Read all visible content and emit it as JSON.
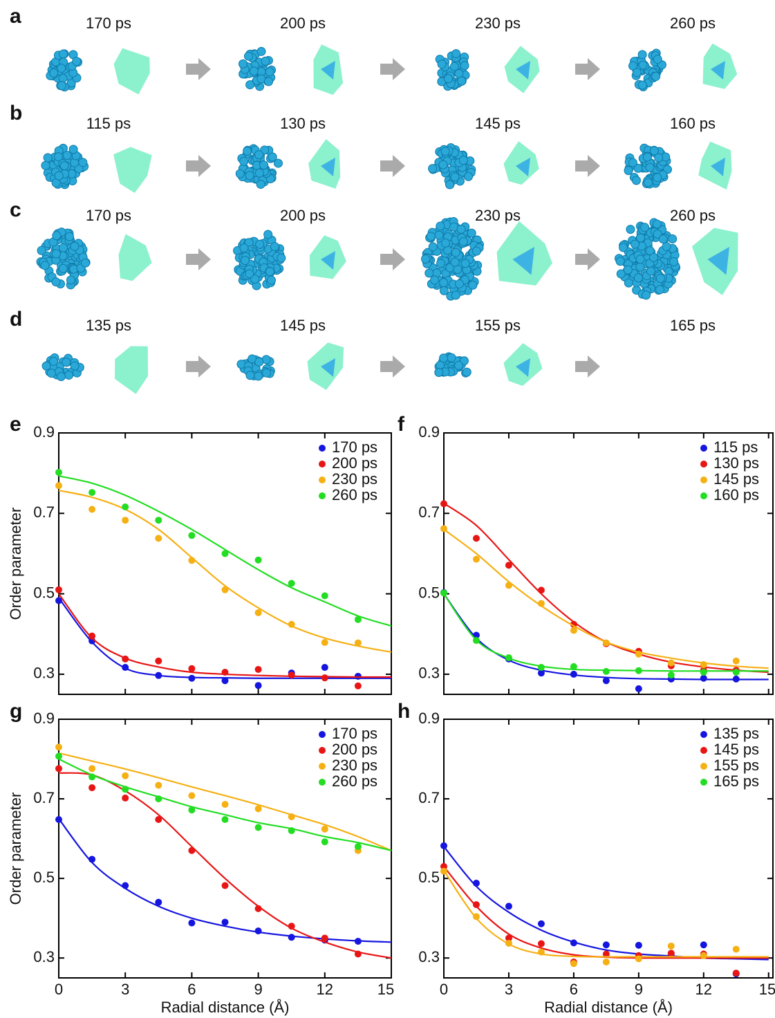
{
  "rows": [
    {
      "letter": "a",
      "times": [
        "170 ps",
        "200 ps",
        "230 ps",
        "260 ps"
      ]
    },
    {
      "letter": "b",
      "times": [
        "115 ps",
        "130 ps",
        "145 ps",
        "160 ps"
      ]
    },
    {
      "letter": "c",
      "times": [
        "170 ps",
        "200 ps",
        "230 ps",
        "260 ps"
      ]
    },
    {
      "letter": "d",
      "times": [
        "135 ps",
        "145 ps",
        "155 ps",
        "165 ps"
      ]
    }
  ],
  "chart_data": [
    {
      "type": "scatter",
      "panel": "e",
      "ylabel": "Order parameter",
      "xtick_labels": false,
      "x": [
        0,
        1.5,
        3,
        4.5,
        6,
        7.5,
        9,
        10.5,
        12,
        13.5
      ],
      "fit_x": [
        0,
        1.5,
        3,
        4.5,
        6,
        7.5,
        9,
        10.5,
        12,
        13.5,
        15
      ],
      "xlim": [
        0,
        15
      ],
      "ylim": [
        0.25,
        0.9
      ],
      "xticks": [
        0,
        3,
        6,
        9,
        12,
        15
      ],
      "yticks": [
        0.3,
        0.5,
        0.7,
        0.9
      ],
      "legend": "upper right",
      "series": [
        {
          "name": "170 ps",
          "color": "#1515e0",
          "values": [
            0.483,
            0.383,
            0.317,
            0.297,
            0.29,
            0.284,
            0.272,
            0.303,
            0.317,
            0.295
          ],
          "fit": [
            0.49,
            0.38,
            0.315,
            0.297,
            0.292,
            0.291,
            0.29,
            0.29,
            0.29,
            0.29,
            0.29
          ]
        },
        {
          "name": "200 ps",
          "color": "#e81515",
          "values": [
            0.51,
            0.395,
            0.338,
            0.333,
            0.314,
            0.305,
            0.312,
            0.298,
            0.291,
            0.271
          ],
          "fit": [
            0.5,
            0.39,
            0.34,
            0.318,
            0.305,
            0.3,
            0.297,
            0.295,
            0.294,
            0.293,
            0.293
          ]
        },
        {
          "name": "230 ps",
          "color": "#f5b014",
          "values": [
            0.769,
            0.71,
            0.683,
            0.638,
            0.583,
            0.51,
            0.453,
            0.424,
            0.379,
            0.378
          ],
          "fit": [
            0.757,
            0.74,
            0.71,
            0.66,
            0.59,
            0.52,
            0.465,
            0.42,
            0.39,
            0.37,
            0.355
          ]
        },
        {
          "name": "260 ps",
          "color": "#22dd22",
          "values": [
            0.802,
            0.752,
            0.716,
            0.683,
            0.645,
            0.6,
            0.584,
            0.526,
            0.495,
            0.436
          ],
          "fit": [
            0.793,
            0.775,
            0.745,
            0.705,
            0.66,
            0.61,
            0.56,
            0.515,
            0.48,
            0.445,
            0.42
          ]
        }
      ]
    },
    {
      "type": "scatter",
      "panel": "f",
      "xtick_labels": false,
      "x": [
        0,
        1.5,
        3,
        4.5,
        6,
        7.5,
        9,
        10.5,
        12,
        13.5
      ],
      "fit_x": [
        0,
        1.5,
        3,
        4.5,
        6,
        7.5,
        9,
        10.5,
        12,
        13.5,
        15
      ],
      "xlim": [
        0,
        15.2
      ],
      "ylim": [
        0.25,
        0.9
      ],
      "xticks": [
        0,
        3,
        6,
        9,
        12,
        15
      ],
      "yticks": [
        0.3,
        0.5,
        0.7,
        0.9
      ],
      "legend": "upper right",
      "series": [
        {
          "name": "115 ps",
          "color": "#1515e0",
          "values": [
            0.503,
            0.397,
            0.338,
            0.303,
            0.3,
            0.284,
            0.264,
            0.288,
            0.29,
            0.288
          ],
          "fit": [
            0.5,
            0.39,
            0.335,
            0.31,
            0.298,
            0.292,
            0.289,
            0.288,
            0.287,
            0.287,
            0.287
          ]
        },
        {
          "name": "130 ps",
          "color": "#e81515",
          "values": [
            0.724,
            0.638,
            0.571,
            0.509,
            0.424,
            0.376,
            0.357,
            0.321,
            0.31,
            0.31
          ],
          "fit": [
            0.725,
            0.67,
            0.585,
            0.5,
            0.43,
            0.38,
            0.35,
            0.33,
            0.318,
            0.31,
            0.305
          ]
        },
        {
          "name": "145 ps",
          "color": "#f5b014",
          "values": [
            0.662,
            0.586,
            0.521,
            0.476,
            0.409,
            0.378,
            0.35,
            0.328,
            0.324,
            0.333
          ],
          "fit": [
            0.66,
            0.6,
            0.53,
            0.47,
            0.42,
            0.38,
            0.355,
            0.34,
            0.328,
            0.32,
            0.315
          ]
        },
        {
          "name": "160 ps",
          "color": "#22dd22",
          "values": [
            0.502,
            0.384,
            0.341,
            0.317,
            0.319,
            0.307,
            0.309,
            0.298,
            0.305,
            0.305
          ],
          "fit": [
            0.5,
            0.385,
            0.34,
            0.32,
            0.312,
            0.31,
            0.309,
            0.308,
            0.308,
            0.308,
            0.308
          ]
        }
      ]
    },
    {
      "type": "scatter",
      "panel": "g",
      "ylabel": "Order parameter",
      "xlabel": "Radial distance (Å)",
      "xtick_labels": true,
      "x": [
        0,
        1.5,
        3,
        4.5,
        6,
        7.5,
        9,
        10.5,
        12,
        13.5
      ],
      "fit_x": [
        0,
        1.5,
        3,
        4.5,
        6,
        7.5,
        9,
        10.5,
        12,
        13.5,
        15
      ],
      "xlim": [
        0,
        15
      ],
      "ylim": [
        0.25,
        0.9
      ],
      "xticks": [
        0,
        3,
        6,
        9,
        12,
        15
      ],
      "yticks": [
        0.3,
        0.5,
        0.7,
        0.9
      ],
      "legend": "upper right",
      "series": [
        {
          "name": "170 ps",
          "color": "#1515e0",
          "values": [
            0.648,
            0.548,
            0.482,
            0.44,
            0.388,
            0.39,
            0.368,
            0.352,
            0.345,
            0.342
          ],
          "fit": [
            0.65,
            0.54,
            0.475,
            0.43,
            0.4,
            0.38,
            0.365,
            0.355,
            0.348,
            0.343,
            0.34
          ]
        },
        {
          "name": "200 ps",
          "color": "#e81515",
          "values": [
            0.776,
            0.728,
            0.702,
            0.648,
            0.57,
            0.482,
            0.424,
            0.38,
            0.35,
            0.31
          ],
          "fit": [
            0.765,
            0.76,
            0.72,
            0.66,
            0.58,
            0.5,
            0.43,
            0.375,
            0.34,
            0.315,
            0.3
          ]
        },
        {
          "name": "230 ps",
          "color": "#f5b014",
          "values": [
            0.83,
            0.776,
            0.758,
            0.734,
            0.708,
            0.686,
            0.675,
            0.655,
            0.624,
            0.57
          ],
          "fit": [
            0.815,
            0.795,
            0.775,
            0.753,
            0.73,
            0.708,
            0.685,
            0.66,
            0.635,
            0.605,
            0.57
          ]
        },
        {
          "name": "260 ps",
          "color": "#22dd22",
          "values": [
            0.807,
            0.755,
            0.724,
            0.7,
            0.672,
            0.648,
            0.628,
            0.62,
            0.592,
            0.58
          ],
          "fit": [
            0.8,
            0.76,
            0.73,
            0.705,
            0.68,
            0.66,
            0.64,
            0.625,
            0.605,
            0.59,
            0.57
          ]
        }
      ]
    },
    {
      "type": "scatter",
      "panel": "h",
      "xlabel": "Radial distance (Å)",
      "xtick_labels": true,
      "x": [
        0,
        1.5,
        3,
        4.5,
        6,
        7.5,
        9,
        10.5,
        12,
        13.5
      ],
      "fit_x": [
        0,
        1.5,
        3,
        4.5,
        6,
        7.5,
        9,
        10.5,
        12,
        13.5,
        15
      ],
      "xlim": [
        0,
        15.2
      ],
      "ylim": [
        0.25,
        0.9
      ],
      "xticks": [
        0,
        3,
        6,
        9,
        12,
        15
      ],
      "yticks": [
        0.3,
        0.5,
        0.7,
        0.9
      ],
      "legend": "upper right",
      "series": [
        {
          "name": "135 ps",
          "color": "#1515e0",
          "values": [
            0.582,
            0.488,
            0.43,
            0.386,
            0.338,
            0.333,
            0.332,
            0.31,
            0.333,
            0.26
          ],
          "fit": [
            0.58,
            0.48,
            0.415,
            0.37,
            0.34,
            0.32,
            0.31,
            0.305,
            0.3,
            0.298,
            0.296
          ]
        },
        {
          "name": "145 ps",
          "color": "#e81515",
          "values": [
            0.53,
            0.434,
            0.35,
            0.336,
            0.29,
            0.31,
            0.306,
            0.312,
            0.31,
            0.262
          ],
          "fit": [
            0.53,
            0.43,
            0.36,
            0.325,
            0.308,
            0.302,
            0.3,
            0.3,
            0.3,
            0.3,
            0.3
          ]
        },
        {
          "name": "155 ps",
          "color": "#f5b014",
          "values": [
            0.518,
            0.404,
            0.337,
            0.315,
            0.286,
            0.29,
            0.298,
            0.33,
            0.306,
            0.322
          ],
          "fit": [
            0.52,
            0.4,
            0.335,
            0.31,
            0.304,
            0.303,
            0.303,
            0.303,
            0.303,
            0.303,
            0.303
          ]
        },
        {
          "name": "165 ps",
          "color": "#22dd22",
          "values": [
            null,
            null,
            null,
            null,
            null,
            null,
            null,
            null,
            null,
            null
          ],
          "fit": [
            null,
            null,
            null,
            null,
            null,
            null,
            null,
            null,
            null,
            null,
            null
          ]
        }
      ]
    }
  ]
}
